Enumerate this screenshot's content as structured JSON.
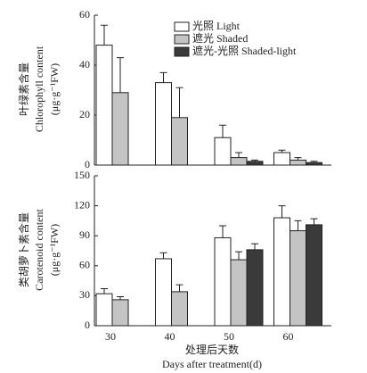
{
  "chart_data": [
    {
      "type": "bar",
      "y_label_cn": "叶绿素含量",
      "y_label": "Chlorophyll content",
      "y_unit": "(μg·g⁻¹FW)",
      "categories": [
        null,
        null,
        null,
        null
      ],
      "ylim": [
        0,
        60
      ],
      "yticks": [
        0,
        20,
        40,
        60
      ],
      "series": [
        {
          "name": "光照  Light",
          "color": "#ffffff",
          "values": [
            48,
            33,
            11,
            5
          ],
          "errors": [
            8,
            4,
            5,
            1
          ]
        },
        {
          "name": "遮光  Shaded",
          "color": "#c4c4c4",
          "values": [
            29,
            19,
            3,
            2
          ],
          "errors": [
            14,
            12,
            2,
            1
          ]
        },
        {
          "name": "遮光-光照  Shaded-light",
          "color": "#3a3a3a",
          "values": [
            null,
            null,
            1.5,
            1
          ],
          "errors": [
            null,
            null,
            0.5,
            0.5
          ]
        }
      ]
    },
    {
      "type": "bar",
      "y_label_cn": "类胡萝卜素含量",
      "y_label": "Carotenoid content",
      "y_unit": "(μg·g⁻¹FW)",
      "x_label_cn": "处理后天数",
      "x_label": "Days after treatment(d)",
      "categories": [
        "30",
        "40",
        "50",
        "60"
      ],
      "ylim": [
        0,
        150
      ],
      "yticks": [
        0,
        30,
        60,
        90,
        120,
        150
      ],
      "series": [
        {
          "name": "光照  Light",
          "color": "#ffffff",
          "values": [
            32,
            67,
            88,
            108
          ],
          "errors": [
            5,
            6,
            12,
            12
          ]
        },
        {
          "name": "遮光  Shaded",
          "color": "#c4c4c4",
          "values": [
            26,
            34,
            66,
            95
          ],
          "errors": [
            3,
            7,
            8,
            10
          ]
        },
        {
          "name": "遮光-光照  Shaded-light",
          "color": "#3a3a3a",
          "values": [
            null,
            null,
            76,
            101
          ],
          "errors": [
            null,
            null,
            6,
            6
          ]
        }
      ]
    }
  ]
}
